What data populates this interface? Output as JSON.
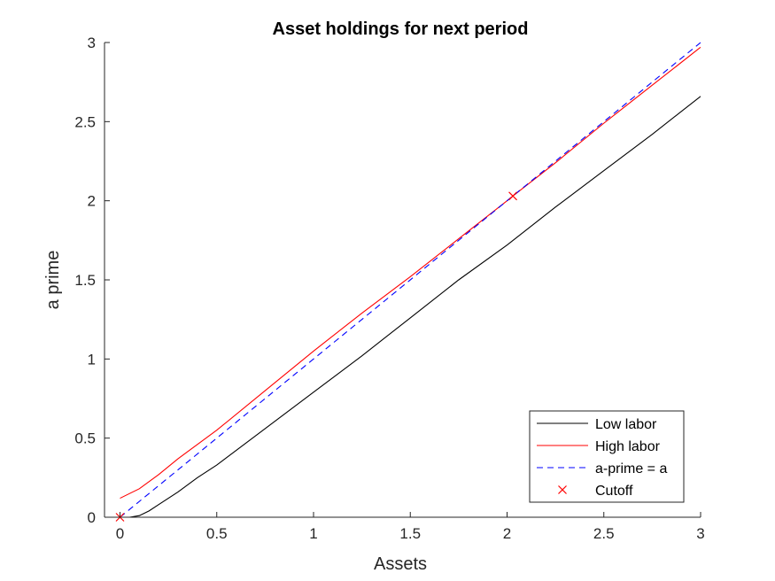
{
  "chart_data": {
    "type": "line",
    "title": "Asset holdings for next period",
    "xlabel": "Assets",
    "ylabel": "a prime",
    "xlim": [
      -0.08,
      3
    ],
    "ylim": [
      0,
      3
    ],
    "xticks": [
      0,
      0.5,
      1,
      1.5,
      2,
      2.5,
      3
    ],
    "yticks": [
      0,
      0.5,
      1,
      1.5,
      2,
      2.5,
      3
    ],
    "xtick_labels": [
      "0",
      "0.5",
      "1",
      "1.5",
      "2",
      "2.5",
      "3"
    ],
    "ytick_labels": [
      "0",
      "0.5",
      "1",
      "1.5",
      "2",
      "2.5",
      "3"
    ],
    "grid": false,
    "legend_position": "bottom-right",
    "series": [
      {
        "name": "Low labor",
        "color": "#000000",
        "style": "solid",
        "x": [
          0,
          0.05,
          0.1,
          0.15,
          0.2,
          0.3,
          0.4,
          0.5,
          0.75,
          1,
          1.25,
          1.5,
          1.75,
          2,
          2.25,
          2.5,
          2.75,
          3
        ],
        "y": [
          0,
          0,
          0.01,
          0.04,
          0.08,
          0.16,
          0.25,
          0.33,
          0.56,
          0.79,
          1.02,
          1.26,
          1.5,
          1.72,
          1.96,
          2.19,
          2.42,
          2.66
        ]
      },
      {
        "name": "High labor",
        "color": "#ff0000",
        "style": "solid",
        "x": [
          0,
          0.1,
          0.2,
          0.3,
          0.4,
          0.5,
          0.75,
          1,
          1.25,
          1.5,
          1.75,
          2,
          2.03,
          2.25,
          2.5,
          2.75,
          3
        ],
        "y": [
          0.12,
          0.18,
          0.27,
          0.37,
          0.46,
          0.55,
          0.8,
          1.05,
          1.29,
          1.52,
          1.76,
          2.0,
          2.03,
          2.24,
          2.49,
          2.73,
          2.97
        ]
      },
      {
        "name": "a-prime = a",
        "color": "#0000ff",
        "style": "dashed",
        "x": [
          0,
          3
        ],
        "y": [
          0,
          3
        ]
      },
      {
        "name": "Cutoff",
        "color": "#ff0000",
        "style": "marker-x",
        "x": [
          0,
          2.03
        ],
        "y": [
          0,
          2.03
        ]
      }
    ]
  }
}
